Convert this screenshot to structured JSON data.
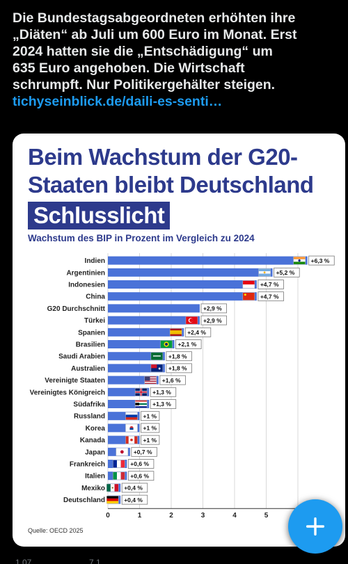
{
  "post": {
    "text_lines": [
      "Die Bundestagsabgeordneten erhöhten ihre",
      "„Diäten“ ab Juli um 600 Euro im Monat. Erst",
      "2024 hatten sie die „Entschädigung“ um",
      "635 Euro angehoben.  Die Wirtschaft",
      "schrumpft. Nur Politikergehälter steigen."
    ],
    "link": "tichyseinblick.de/daili-es-senti…"
  },
  "card": {
    "headline_line1": "Beim Wachstum der G20-",
    "headline_line2": "Staaten bleibt Deutschland",
    "headline_band": "Schlusslicht",
    "subtitle": "Wachstum des BIP in Prozent im Vergleich zu 2024",
    "source": "Quelle: OECD 2025"
  },
  "chart_data": {
    "type": "bar",
    "orientation": "horizontal",
    "categories": [
      "Indien",
      "Argentinien",
      "Indonesien",
      "China",
      "G20 Durchschnitt",
      "Türkei",
      "Spanien",
      "Brasilien",
      "Saudi Arabien",
      "Australien",
      "Vereinigte Staaten",
      "Vereinigtes Königreich",
      "Südafrika",
      "Russland",
      "Korea",
      "Kanada",
      "Japan",
      "Frankreich",
      "Italien",
      "Mexiko",
      "Deutschland"
    ],
    "values": [
      6.3,
      5.2,
      4.7,
      4.7,
      2.9,
      2.9,
      2.4,
      2.1,
      1.8,
      1.8,
      1.6,
      1.3,
      1.3,
      1.0,
      1.0,
      1.0,
      0.7,
      0.6,
      0.6,
      0.4,
      0.4
    ],
    "value_labels": [
      "+6,3 %",
      "+5,2 %",
      "+4,7 %",
      "+4,7 %",
      "+2,9 %",
      "+2,9 %",
      "+2,4 %",
      "+2,1 %",
      "+1,8 %",
      "+1,8 %",
      "+1,6 %",
      "+1,3 %",
      "+1,3 %",
      "+1 %",
      "+1 %",
      "+1 %",
      "+0,7 %",
      "+0,6 %",
      "+0,6 %",
      "+0,4 %",
      "+0,4 %"
    ],
    "flags": [
      "india-flag",
      "argentina-flag",
      "indonesia-flag",
      "china-flag",
      "",
      "turkey-flag",
      "spain-flag",
      "brazil-flag",
      "saudi-arabia-flag",
      "australia-flag",
      "usa-flag",
      "uk-flag",
      "south-africa-flag",
      "russia-flag",
      "korea-flag",
      "canada-flag",
      "japan-flag",
      "france-flag",
      "italy-flag",
      "mexico-flag",
      "germany-flag"
    ],
    "xticks": [
      "0",
      "1",
      "2",
      "3",
      "4",
      "5"
    ],
    "xlim": [
      0,
      6
    ],
    "grid": true,
    "bar_color": "#4a72d8"
  },
  "actions": {
    "reply_count": "1,07...",
    "repost_count": "7,1...",
    "like_count": "...",
    "views_count": "..."
  },
  "colors": {
    "accent": "#1d9bf0",
    "headline": "#2d3a8c"
  },
  "fab_icon": "plus-icon"
}
